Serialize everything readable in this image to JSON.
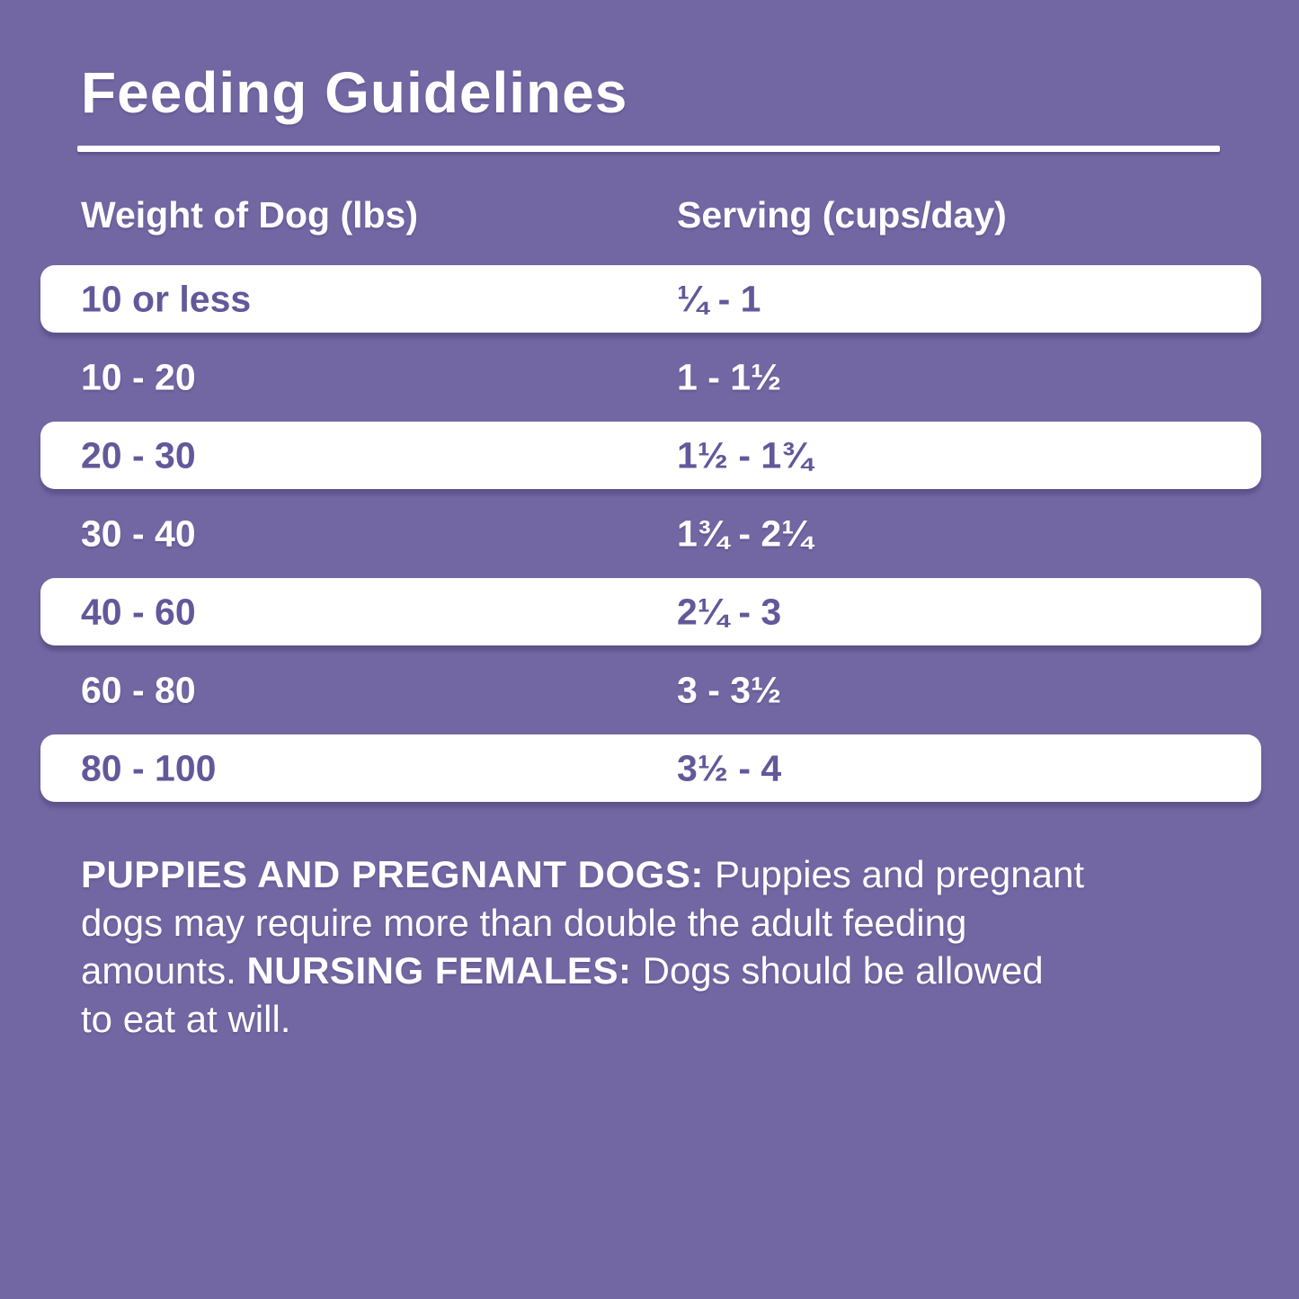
{
  "title": "Feeding Guidelines",
  "colors": {
    "background": "#7267a3",
    "row_background_light": "#ffffff",
    "row_text_purple": "#63589a",
    "text_white": "#ffffff"
  },
  "table": {
    "columns": [
      "Weight of Dog (lbs)",
      "Serving (cups/day)"
    ],
    "rows": [
      {
        "weight": "10 or less",
        "serving": "¼ - 1"
      },
      {
        "weight": "10 - 20",
        "serving": "1 - 1½"
      },
      {
        "weight": "20 - 30",
        "serving": "1½ - 1¾"
      },
      {
        "weight": "30 - 40",
        "serving": "1¾ - 2¼"
      },
      {
        "weight": "40 - 60",
        "serving": "2¼ - 3"
      },
      {
        "weight": "60 - 80",
        "serving": "3 - 3½"
      },
      {
        "weight": "80 - 100",
        "serving": "3½ - 4"
      }
    ]
  },
  "notes": {
    "full_text": "PUPPIES AND PREGNANT DOGS: Puppies and pregnant dogs may require more than double the adult feeding amounts. NURSING FEMALES: Dogs should be allowed to eat at will.",
    "lines": [
      [
        {
          "text": "PUPPIES AND PREGNANT DOGS: ",
          "bold": true
        },
        {
          "text": "Puppies and pregnant",
          "bold": false
        }
      ],
      [
        {
          "text": "dogs may require more than double the adult feeding",
          "bold": false
        }
      ],
      [
        {
          "text": "amounts. ",
          "bold": false
        },
        {
          "text": "NURSING FEMALES: ",
          "bold": true
        },
        {
          "text": "Dogs should be allowed",
          "bold": false
        }
      ],
      [
        {
          "text": "to eat at will.",
          "bold": false
        }
      ]
    ]
  }
}
